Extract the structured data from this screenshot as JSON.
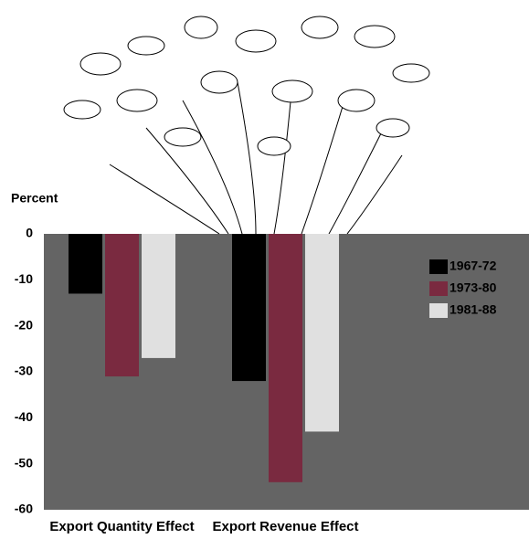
{
  "chart_data": {
    "type": "bar",
    "y_label": "Percent",
    "categories": [
      "Export Quantity Effect",
      "Export Revenue Effect"
    ],
    "series": [
      {
        "name": "1967-72",
        "color": "#000000",
        "values": [
          -13,
          -32
        ]
      },
      {
        "name": "1973-80",
        "color": "#7a2a40",
        "values": [
          -31,
          -54
        ]
      },
      {
        "name": "1981-88",
        "color": "#e0e0e0",
        "values": [
          -27,
          -43
        ]
      }
    ],
    "ylim": [
      -60,
      0
    ],
    "yticks": [
      0,
      -10,
      -20,
      -30,
      -40,
      -50,
      -60
    ],
    "background": "#646464",
    "legend": "right"
  }
}
